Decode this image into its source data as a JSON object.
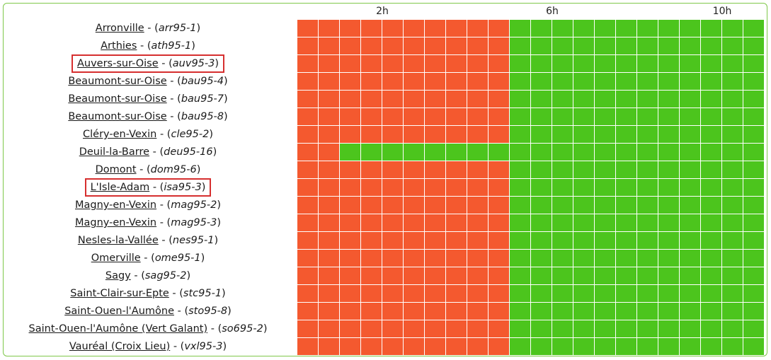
{
  "colors": {
    "down": "#f4592f",
    "up": "#4cc51d",
    "highlight": "#d62f2f"
  },
  "hours": [
    {
      "label": "2h",
      "col": 4
    },
    {
      "label": "6h",
      "col": 12
    },
    {
      "label": "10h",
      "col": 20
    }
  ],
  "columns": 22,
  "rows": [
    {
      "name": "Arronville",
      "code": "arr95-1",
      "green_from": 10
    },
    {
      "name": "Arthies",
      "code": "ath95-1",
      "green_from": 10
    },
    {
      "name": "Auvers-sur-Oise",
      "code": "auv95-3",
      "green_from": 10,
      "highlighted": true
    },
    {
      "name": "Beaumont-sur-Oise",
      "code": "bau95-4",
      "green_from": 10
    },
    {
      "name": "Beaumont-sur-Oise",
      "code": "bau95-7",
      "green_from": 10
    },
    {
      "name": "Beaumont-sur-Oise",
      "code": "bau95-8",
      "green_from": 10
    },
    {
      "name": "Cléry-en-Vexin",
      "code": "cle95-2",
      "green_from": 10
    },
    {
      "name": "Deuil-la-Barre",
      "code": "deu95-16",
      "green_from": 2
    },
    {
      "name": "Domont",
      "code": "dom95-6",
      "green_from": 10
    },
    {
      "name": "L'Isle-Adam",
      "code": "isa95-3",
      "green_from": 10,
      "highlighted": true
    },
    {
      "name": "Magny-en-Vexin",
      "code": "mag95-2",
      "green_from": 10
    },
    {
      "name": "Magny-en-Vexin",
      "code": "mag95-3",
      "green_from": 10
    },
    {
      "name": "Nesles-la-Vallée",
      "code": "nes95-1",
      "green_from": 10
    },
    {
      "name": "Omerville",
      "code": "ome95-1",
      "green_from": 10
    },
    {
      "name": "Sagy",
      "code": "sag95-2",
      "green_from": 10
    },
    {
      "name": "Saint-Clair-sur-Epte",
      "code": "stc95-1",
      "green_from": 10
    },
    {
      "name": "Saint-Ouen-l'Aumône",
      "code": "sto95-8",
      "green_from": 10
    },
    {
      "name": "Saint-Ouen-l'Aumône (Vert Galant)",
      "code": "so695-2",
      "green_from": 10
    },
    {
      "name": "Vauréal (Croix Lieu)",
      "code": "vxl95-3",
      "green_from": 10
    }
  ]
}
